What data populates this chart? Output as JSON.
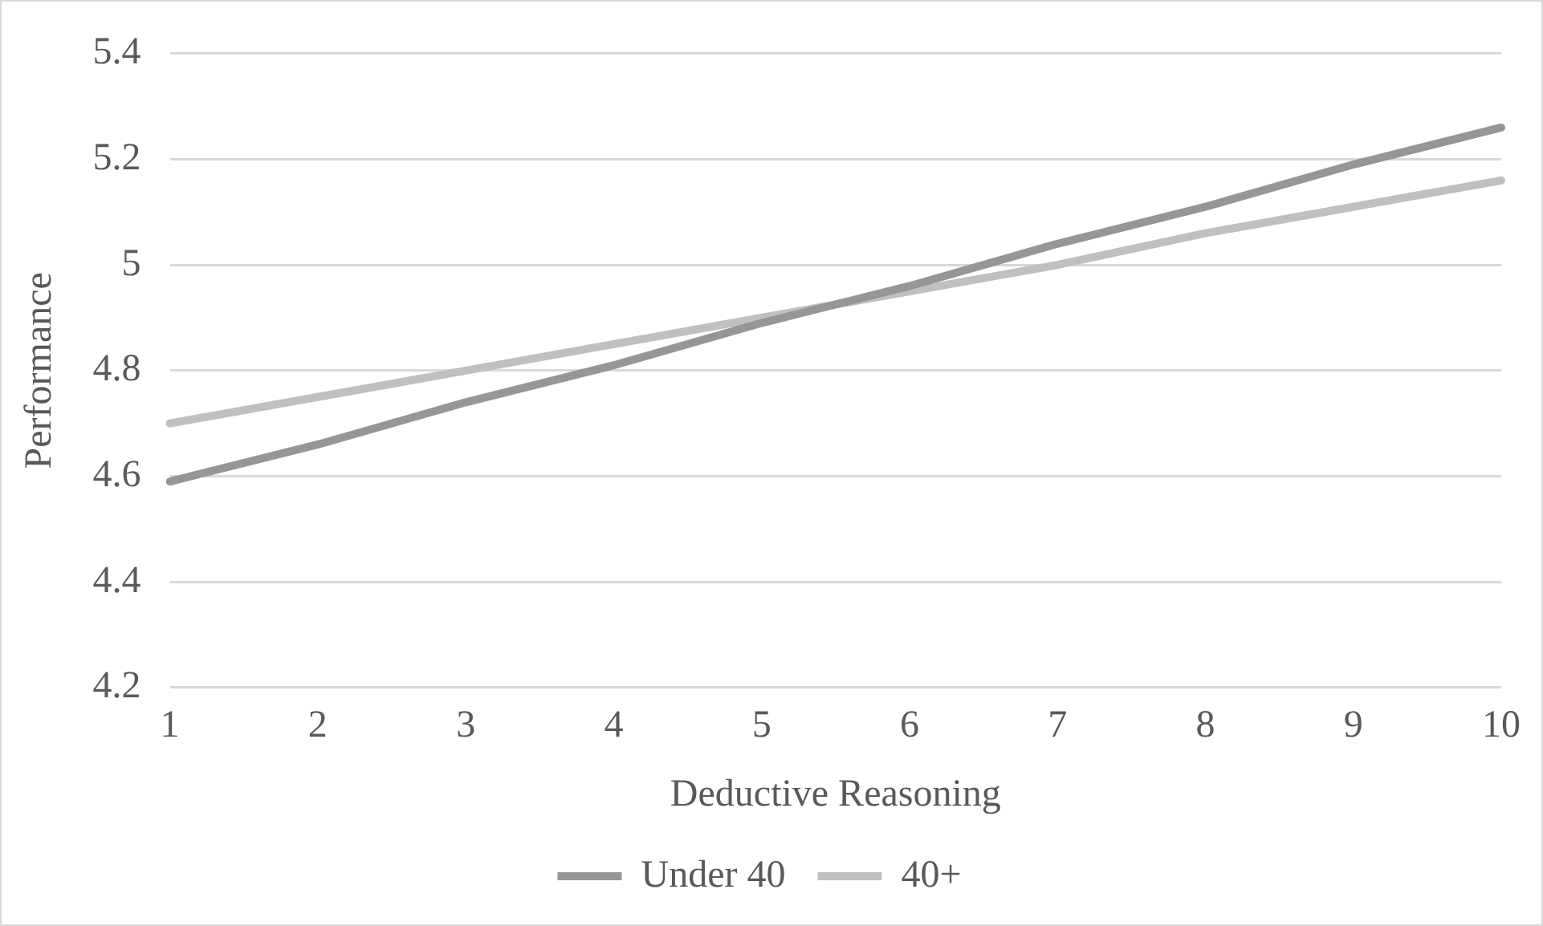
{
  "chart_data": {
    "type": "line",
    "xlabel": "Deductive Reasoning",
    "ylabel": "Performance",
    "categories": [
      "1",
      "2",
      "3",
      "4",
      "5",
      "6",
      "7",
      "8",
      "9",
      "10"
    ],
    "series": [
      {
        "name": "Under 40",
        "color": "#969696",
        "values": [
          4.59,
          4.66,
          4.74,
          4.81,
          4.89,
          4.96,
          5.04,
          5.11,
          5.19,
          5.26
        ]
      },
      {
        "name": "40+",
        "color": "#c0c0c0",
        "values": [
          4.7,
          4.75,
          4.8,
          4.85,
          4.9,
          4.95,
          5.0,
          5.06,
          5.11,
          5.16
        ]
      }
    ],
    "ylim": [
      4.2,
      5.4
    ],
    "yticks": [
      4.2,
      4.4,
      4.6,
      4.8,
      5,
      5.2,
      5.4
    ],
    "grid": "y",
    "legend": "bottom",
    "marker": "none",
    "line_style": "solid"
  }
}
